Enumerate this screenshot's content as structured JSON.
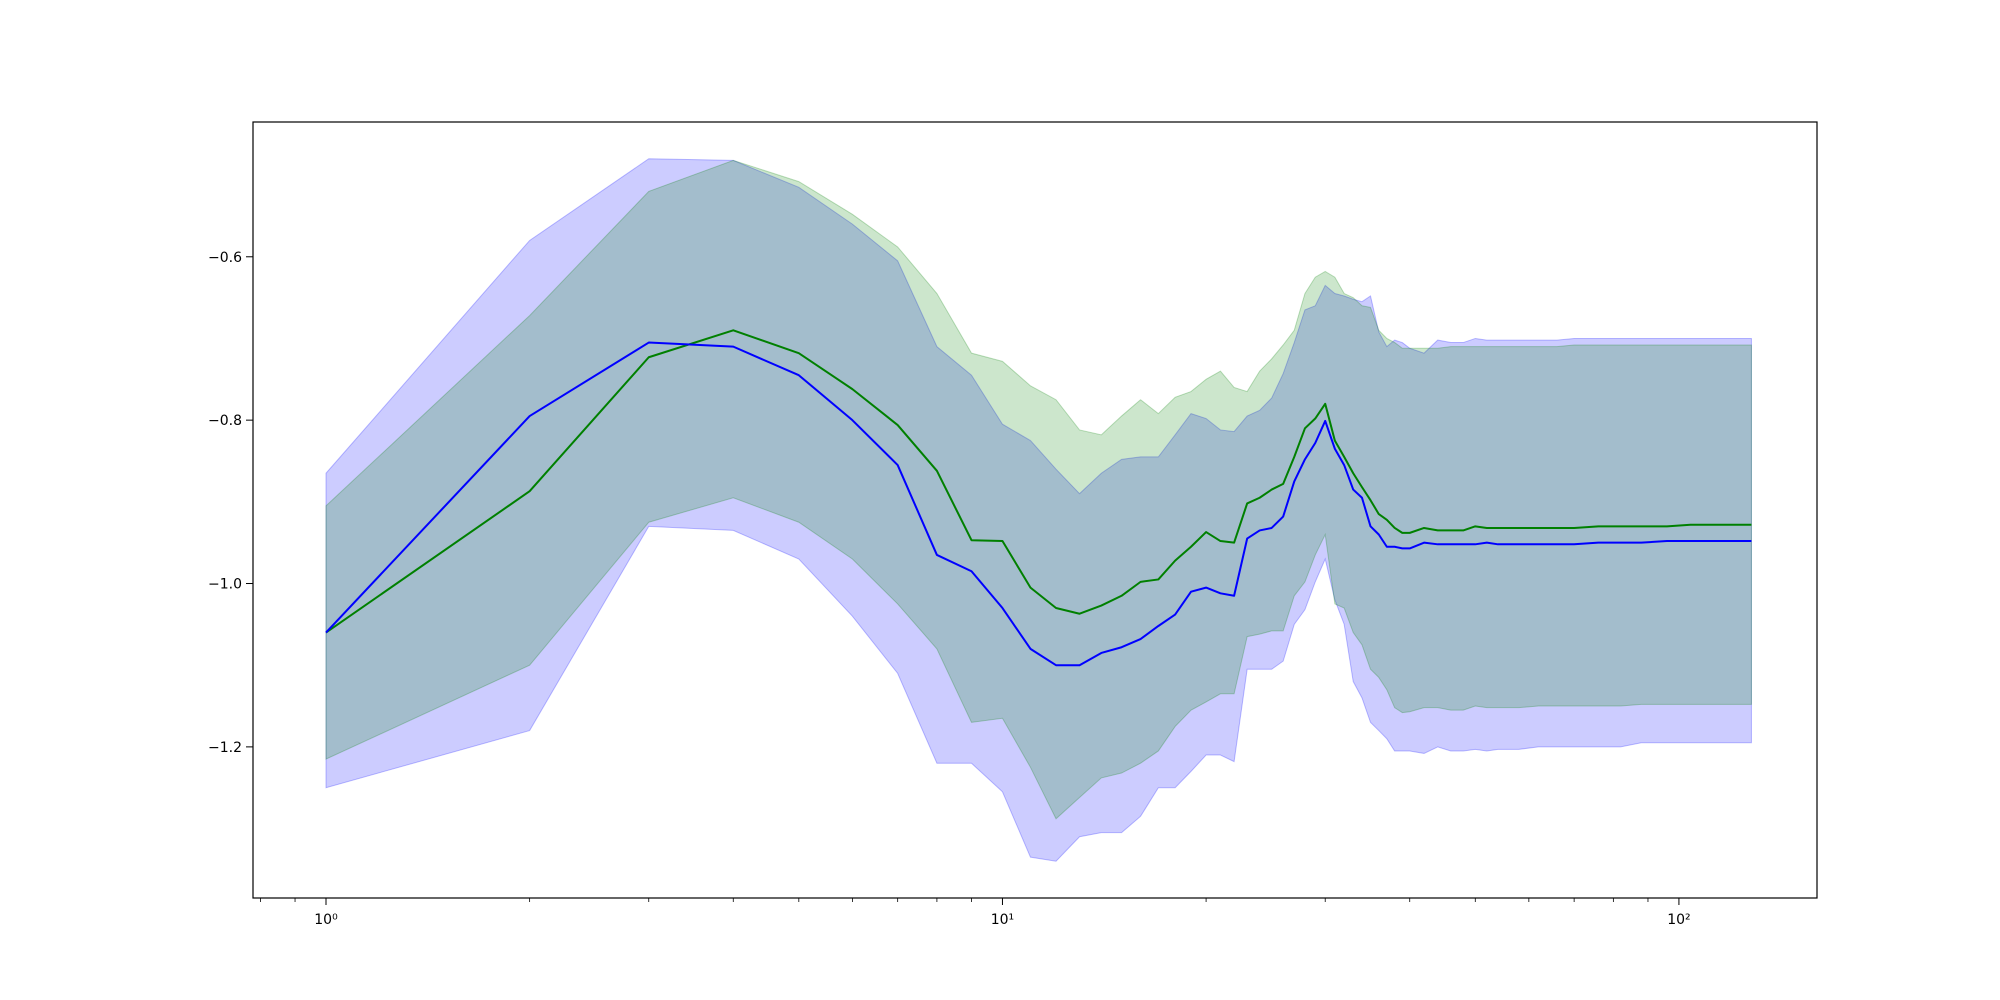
{
  "chart_data": {
    "type": "line",
    "title": "",
    "xlabel": "",
    "ylabel": "",
    "xscale": "log",
    "xlim": [
      0.78,
      160
    ],
    "ylim": [
      -1.385,
      -0.435
    ],
    "grid": false,
    "legend": "none",
    "x_ticks": [
      {
        "value": 1,
        "label": "10⁰"
      },
      {
        "value": 10,
        "label": "10¹"
      },
      {
        "value": 100,
        "label": "10²"
      }
    ],
    "y_ticks": [
      {
        "value": -0.6,
        "label": "−0.6"
      },
      {
        "value": -0.8,
        "label": "−0.8"
      },
      {
        "value": -1.0,
        "label": "−1.0"
      },
      {
        "value": -1.2,
        "label": "−1.2"
      }
    ],
    "x": [
      1,
      2,
      3,
      4,
      5,
      6,
      7,
      8,
      9,
      10,
      11,
      12,
      13,
      14,
      15,
      16,
      17,
      18,
      19,
      20,
      21,
      22,
      23,
      24,
      25,
      26,
      27,
      28,
      29,
      30,
      31,
      32,
      33,
      34,
      35,
      36,
      37,
      38,
      39,
      40,
      42,
      44,
      46,
      48,
      50,
      52,
      54,
      58,
      62,
      66,
      70,
      76,
      82,
      88,
      96,
      104,
      112,
      128
    ],
    "series": [
      {
        "color": "#0000ff",
        "fill_color": "#0000ff",
        "values": [
          -1.06,
          -0.795,
          -0.705,
          -0.71,
          -0.745,
          -0.8,
          -0.855,
          -0.965,
          -0.985,
          -1.03,
          -1.08,
          -1.1,
          -1.1,
          -1.085,
          -1.078,
          -1.068,
          -1.052,
          -1.038,
          -1.01,
          -1.005,
          -1.012,
          -1.015,
          -0.945,
          -0.935,
          -0.932,
          -0.918,
          -0.875,
          -0.848,
          -0.828,
          -0.801,
          -0.835,
          -0.855,
          -0.885,
          -0.895,
          -0.93,
          -0.94,
          -0.955,
          -0.955,
          -0.957,
          -0.957,
          -0.95,
          -0.952,
          -0.952,
          -0.952,
          -0.952,
          -0.95,
          -0.952,
          -0.952,
          -0.952,
          -0.952,
          -0.952,
          -0.95,
          -0.95,
          -0.95,
          -0.948,
          -0.948,
          -0.948,
          -0.948
        ],
        "lower": [
          -1.25,
          -1.18,
          -0.93,
          -0.935,
          -0.97,
          -1.04,
          -1.11,
          -1.22,
          -1.22,
          -1.255,
          -1.335,
          -1.34,
          -1.31,
          -1.305,
          -1.305,
          -1.285,
          -1.25,
          -1.25,
          -1.23,
          -1.21,
          -1.21,
          -1.218,
          -1.105,
          -1.105,
          -1.105,
          -1.095,
          -1.05,
          -1.032,
          -0.998,
          -0.97,
          -1.02,
          -1.05,
          -1.12,
          -1.14,
          -1.17,
          -1.18,
          -1.19,
          -1.205,
          -1.205,
          -1.205,
          -1.208,
          -1.2,
          -1.205,
          -1.205,
          -1.203,
          -1.205,
          -1.203,
          -1.203,
          -1.2,
          -1.2,
          -1.2,
          -1.2,
          -1.2,
          -1.195,
          -1.195,
          -1.195,
          -1.195,
          -1.195
        ],
        "upper": [
          -0.865,
          -0.58,
          -0.48,
          -0.482,
          -0.515,
          -0.56,
          -0.605,
          -0.71,
          -0.745,
          -0.805,
          -0.825,
          -0.86,
          -0.89,
          -0.865,
          -0.848,
          -0.845,
          -0.845,
          -0.818,
          -0.792,
          -0.798,
          -0.812,
          -0.814,
          -0.795,
          -0.788,
          -0.773,
          -0.743,
          -0.705,
          -0.665,
          -0.66,
          -0.635,
          -0.645,
          -0.648,
          -0.652,
          -0.655,
          -0.648,
          -0.692,
          -0.71,
          -0.702,
          -0.705,
          -0.712,
          -0.718,
          -0.702,
          -0.705,
          -0.705,
          -0.7,
          -0.702,
          -0.702,
          -0.702,
          -0.702,
          -0.702,
          -0.7,
          -0.7,
          -0.7,
          -0.7,
          -0.7,
          -0.7,
          -0.7,
          -0.7
        ]
      },
      {
        "color": "#008000",
        "fill_color": "#008000",
        "values": [
          -1.06,
          -0.887,
          -0.723,
          -0.69,
          -0.718,
          -0.762,
          -0.806,
          -0.862,
          -0.947,
          -0.948,
          -1.005,
          -1.03,
          -1.037,
          -1.027,
          -1.015,
          -0.998,
          -0.995,
          -0.972,
          -0.955,
          -0.937,
          -0.948,
          -0.95,
          -0.902,
          -0.895,
          -0.885,
          -0.878,
          -0.845,
          -0.81,
          -0.798,
          -0.78,
          -0.825,
          -0.845,
          -0.865,
          -0.882,
          -0.898,
          -0.915,
          -0.922,
          -0.932,
          -0.938,
          -0.938,
          -0.932,
          -0.935,
          -0.935,
          -0.935,
          -0.93,
          -0.932,
          -0.932,
          -0.932,
          -0.932,
          -0.932,
          -0.932,
          -0.93,
          -0.93,
          -0.93,
          -0.93,
          -0.928,
          -0.928,
          -0.928
        ],
        "lower": [
          -1.215,
          -1.1,
          -0.925,
          -0.895,
          -0.925,
          -0.97,
          -1.025,
          -1.08,
          -1.17,
          -1.165,
          -1.225,
          -1.288,
          -1.262,
          -1.238,
          -1.232,
          -1.22,
          -1.205,
          -1.175,
          -1.155,
          -1.145,
          -1.135,
          -1.135,
          -1.065,
          -1.062,
          -1.058,
          -1.058,
          -1.015,
          -0.998,
          -0.965,
          -0.94,
          -1.025,
          -1.03,
          -1.06,
          -1.075,
          -1.105,
          -1.115,
          -1.13,
          -1.152,
          -1.158,
          -1.157,
          -1.152,
          -1.152,
          -1.155,
          -1.155,
          -1.15,
          -1.152,
          -1.152,
          -1.152,
          -1.15,
          -1.15,
          -1.15,
          -1.15,
          -1.15,
          -1.148,
          -1.148,
          -1.148,
          -1.148,
          -1.148
        ],
        "upper": [
          -0.905,
          -0.672,
          -0.52,
          -0.482,
          -0.508,
          -0.548,
          -0.588,
          -0.645,
          -0.718,
          -0.728,
          -0.758,
          -0.775,
          -0.812,
          -0.818,
          -0.795,
          -0.775,
          -0.792,
          -0.772,
          -0.765,
          -0.75,
          -0.74,
          -0.76,
          -0.765,
          -0.74,
          -0.725,
          -0.708,
          -0.69,
          -0.645,
          -0.625,
          -0.618,
          -0.625,
          -0.645,
          -0.65,
          -0.66,
          -0.662,
          -0.69,
          -0.7,
          -0.705,
          -0.712,
          -0.712,
          -0.712,
          -0.712,
          -0.71,
          -0.71,
          -0.71,
          -0.71,
          -0.71,
          -0.71,
          -0.71,
          -0.71,
          -0.708,
          -0.708,
          -0.708,
          -0.708,
          -0.708,
          -0.708,
          -0.708,
          -0.708
        ]
      }
    ]
  }
}
